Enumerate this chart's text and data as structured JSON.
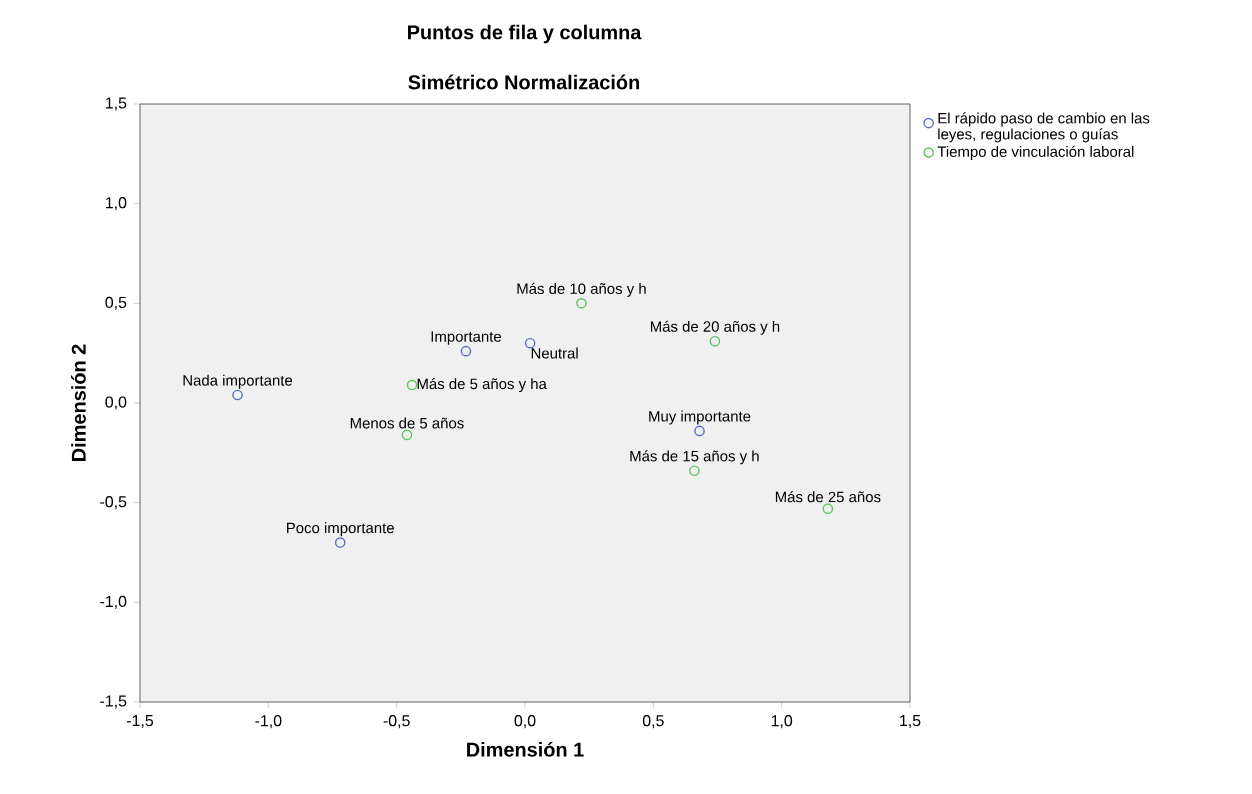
{
  "chart_data": {
    "type": "scatter",
    "title": "Puntos de fila y columna",
    "subtitle": "Simétrico Normalización",
    "xlabel": "Dimensión 1",
    "ylabel": "Dimensión 2",
    "xlim": [
      -1.5,
      1.5
    ],
    "ylim": [
      -1.5,
      1.5
    ],
    "xticks": [
      {
        "value": -1.5,
        "label": "-1,5"
      },
      {
        "value": -1.0,
        "label": "-1,0"
      },
      {
        "value": -0.5,
        "label": "-0,5"
      },
      {
        "value": 0.0,
        "label": "0,0"
      },
      {
        "value": 0.5,
        "label": "0,5"
      },
      {
        "value": 1.0,
        "label": "1,0"
      },
      {
        "value": 1.5,
        "label": "1,5"
      }
    ],
    "yticks": [
      {
        "value": -1.5,
        "label": "-1,5"
      },
      {
        "value": -1.0,
        "label": "-1,0"
      },
      {
        "value": -0.5,
        "label": "-0,5"
      },
      {
        "value": 0.0,
        "label": "0,0"
      },
      {
        "value": 0.5,
        "label": "0,5"
      },
      {
        "value": 1.0,
        "label": "1,0"
      },
      {
        "value": 1.5,
        "label": "1,5"
      }
    ],
    "marker": "circle",
    "grid": false,
    "legend": "top right",
    "series": [
      {
        "name": "El rápido paso de cambio en las leyes, regulaciones o guías",
        "color": "#5a6fc0",
        "x": [
          -1.12,
          -0.23,
          0.02,
          0.68,
          -0.72
        ],
        "values": [
          0.04,
          0.26,
          0.3,
          -0.14,
          -0.7
        ]
      },
      {
        "name": "Tiempo de vinculación laboral",
        "color": "#5cc45c",
        "x": [
          0.22,
          0.74,
          -0.44,
          -0.46,
          0.66,
          1.18
        ],
        "values": [
          0.5,
          0.31,
          0.09,
          -0.16,
          -0.34,
          -0.53
        ]
      }
    ],
    "annotations": [
      {
        "text": "Nada importante",
        "x": -1.12,
        "y": 0.04
      },
      {
        "text": "Importante",
        "x": -0.23,
        "y": 0.26
      },
      {
        "text": "Neutral",
        "x": 0.02,
        "y": 0.3
      },
      {
        "text": "Muy importante",
        "x": 0.68,
        "y": -0.14
      },
      {
        "text": "Poco importante",
        "x": -0.72,
        "y": -0.7
      },
      {
        "text": "Más de 10 años y h",
        "x": 0.22,
        "y": 0.5
      },
      {
        "text": "Más de 20 años y h",
        "x": 0.74,
        "y": 0.31
      },
      {
        "text": "Más de 5 años y ha",
        "x": -0.44,
        "y": 0.09
      },
      {
        "text": "Menos de 5 años",
        "x": -0.46,
        "y": -0.16
      },
      {
        "text": "Más de 15 años y h",
        "x": 0.66,
        "y": -0.34
      },
      {
        "text": "Más de 25 años",
        "x": 1.18,
        "y": -0.53
      }
    ]
  }
}
